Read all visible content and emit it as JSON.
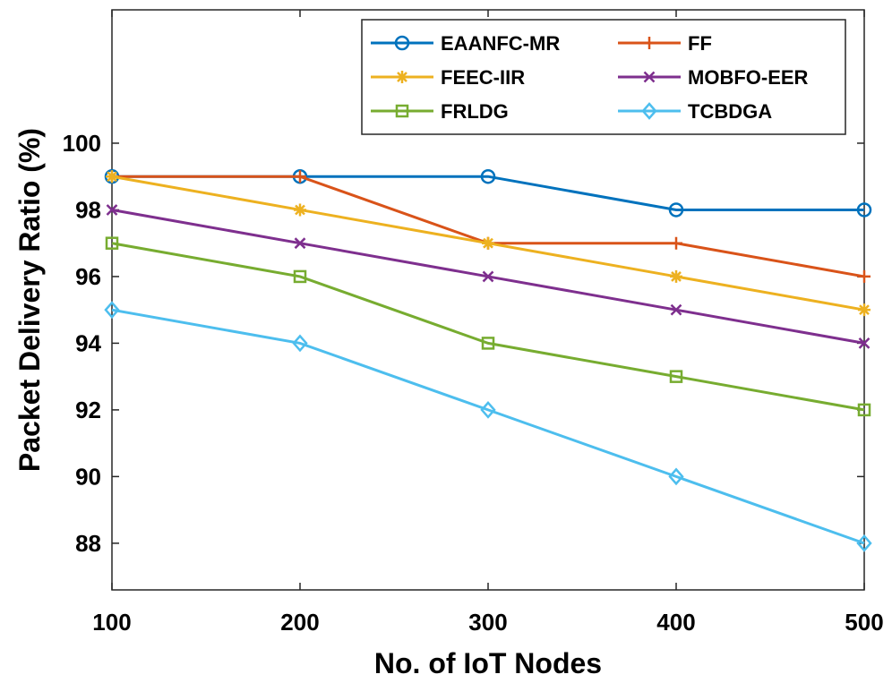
{
  "chart_data": {
    "type": "line",
    "title": "",
    "xlabel": "No. of IoT Nodes",
    "ylabel": "Packet Delivery Ratio (%)",
    "x": [
      100,
      200,
      300,
      400,
      500
    ],
    "xlim": [
      100,
      500
    ],
    "ylim": [
      86.6,
      104
    ],
    "yticks": [
      88,
      90,
      92,
      94,
      96,
      98,
      100
    ],
    "grid": false,
    "legend_position": "top-right",
    "series": [
      {
        "name": "EAANFC-MR",
        "color": "#0072BD",
        "marker": "circle",
        "values": [
          99,
          99,
          99,
          98,
          98
        ]
      },
      {
        "name": "FF",
        "color": "#D95319",
        "marker": "plus",
        "values": [
          99,
          99,
          97,
          97,
          96
        ]
      },
      {
        "name": "FEEC-IIR",
        "color": "#EDB120",
        "marker": "asterisk",
        "values": [
          99,
          98,
          97,
          96,
          95
        ]
      },
      {
        "name": "MOBFO-EER",
        "color": "#7E2F8E",
        "marker": "x",
        "values": [
          98,
          97,
          96,
          95,
          94
        ]
      },
      {
        "name": "FRLDG",
        "color": "#77AC30",
        "marker": "square",
        "values": [
          97,
          96,
          94,
          93,
          92
        ]
      },
      {
        "name": "TCBDGA",
        "color": "#4DBEEE",
        "marker": "diamond",
        "values": [
          95,
          94,
          92,
          90,
          88
        ]
      }
    ]
  }
}
